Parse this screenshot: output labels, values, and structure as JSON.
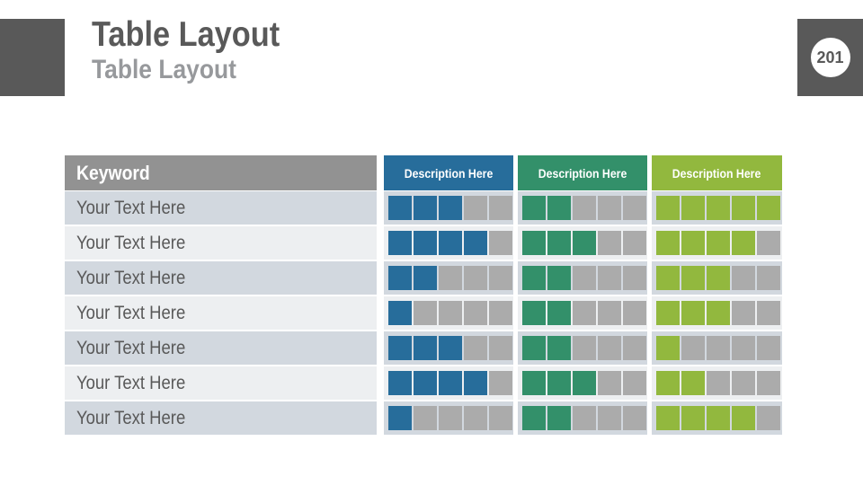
{
  "header": {
    "title": "Table Layout",
    "subtitle": "Table Layout",
    "page_number": "201"
  },
  "table": {
    "keyword_header": "Keyword",
    "max_rating": 5,
    "columns": [
      {
        "label": "Description Here",
        "color": "#276d9b"
      },
      {
        "label": "Description Here",
        "color": "#33906a"
      },
      {
        "label": "Description Here",
        "color": "#92b83e"
      }
    ],
    "rows": [
      {
        "keyword": "Your Text Here",
        "ratings": [
          3,
          2,
          5
        ]
      },
      {
        "keyword": "Your Text Here",
        "ratings": [
          4,
          3,
          4
        ]
      },
      {
        "keyword": "Your Text Here",
        "ratings": [
          2,
          2,
          3
        ]
      },
      {
        "keyword": "Your Text Here",
        "ratings": [
          1,
          2,
          3
        ]
      },
      {
        "keyword": "Your Text Here",
        "ratings": [
          3,
          2,
          1
        ]
      },
      {
        "keyword": "Your Text Here",
        "ratings": [
          4,
          3,
          2
        ]
      },
      {
        "keyword": "Your Text Here",
        "ratings": [
          1,
          2,
          4
        ]
      }
    ]
  },
  "theme": {
    "accent_dark": "#595959",
    "title_color": "#595959",
    "subtitle_color": "#97999c",
    "keyword_header_bg": "#929292",
    "row_odd_bg": "#d2d8df",
    "row_even_bg": "#edeff1",
    "row_text": "#595959",
    "empty_square": "#ababab"
  }
}
